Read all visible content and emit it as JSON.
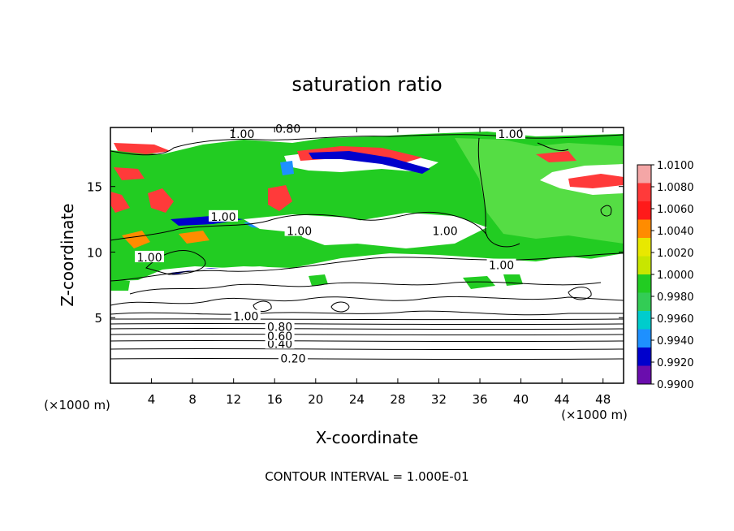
{
  "chart_data": {
    "type": "heatmap",
    "title": "saturation ratio",
    "xlabel": "X-coordinate",
    "ylabel": "Z-coordinate",
    "x_unit_left": "(×1000 m)",
    "x_unit_right": "(×1000 m)",
    "xlim": [
      0,
      50
    ],
    "ylim": [
      0,
      19.5
    ],
    "x_ticks": [
      4,
      8,
      12,
      16,
      20,
      24,
      28,
      32,
      36,
      40,
      44,
      48
    ],
    "y_ticks": [
      5,
      10,
      15
    ],
    "footer": "CONTOUR INTERVAL = 1.000E-01",
    "colorbar": {
      "levels": [
        "1.0100",
        "1.0080",
        "1.0060",
        "1.0040",
        "1.0020",
        "1.0000",
        "0.9980",
        "0.9960",
        "0.9940",
        "0.9920",
        "0.9900"
      ],
      "colors": [
        "#f4a6a6",
        "#ff3a3a",
        "#ff1a1a",
        "#ff8c00",
        "#e8e800",
        "#c8e600",
        "#22cc22",
        "#33cc55",
        "#00cccc",
        "#1e90ff",
        "#0000cc",
        "#6a0dad"
      ]
    },
    "contour_labels": [
      {
        "text": "0.20",
        "x": 17.8,
        "z": 1.9
      },
      {
        "text": "0.40",
        "x": 16.5,
        "z": 3.0
      },
      {
        "text": "0.60",
        "x": 16.5,
        "z": 3.6
      },
      {
        "text": "0.80",
        "x": 16.5,
        "z": 4.3
      },
      {
        "text": "1.00",
        "x": 13.2,
        "z": 5.1
      },
      {
        "text": "1.00",
        "x": 3.8,
        "z": 9.6
      },
      {
        "text": "1.00",
        "x": 11.0,
        "z": 12.7
      },
      {
        "text": "1.00",
        "x": 18.4,
        "z": 11.6
      },
      {
        "text": "1.00",
        "x": 32.6,
        "z": 11.6
      },
      {
        "text": "1.00",
        "x": 38.1,
        "z": 9.0
      },
      {
        "text": "1.00",
        "x": 12.8,
        "z": 19.0
      },
      {
        "text": "0.80",
        "x": 17.3,
        "z": 19.4
      },
      {
        "text": "1.00",
        "x": 39.0,
        "z": 19.0
      }
    ]
  }
}
